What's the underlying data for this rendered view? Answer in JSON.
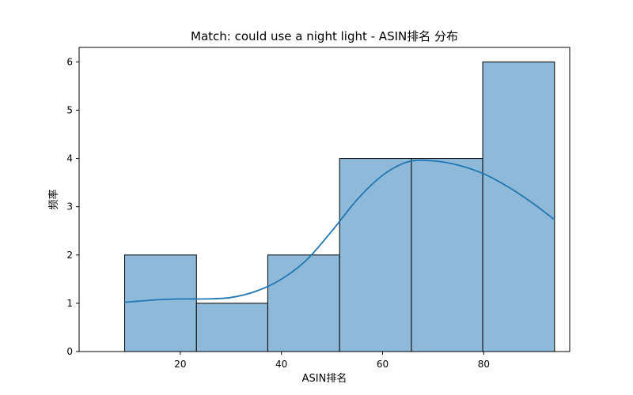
{
  "chart_data": {
    "type": "bar",
    "title": "Match: could use a night light - ASIN排名 分布",
    "xlabel": "ASIN排名",
    "ylabel": "频率",
    "bins": [
      {
        "start": 9.0,
        "end": 23.2,
        "count": 2
      },
      {
        "start": 23.2,
        "end": 37.3,
        "count": 1
      },
      {
        "start": 37.3,
        "end": 51.5,
        "count": 2
      },
      {
        "start": 51.5,
        "end": 65.7,
        "count": 4
      },
      {
        "start": 65.7,
        "end": 79.8,
        "count": 4
      },
      {
        "start": 79.8,
        "end": 94.0,
        "count": 6
      }
    ],
    "kde": {
      "name": "",
      "x": [
        9,
        15,
        20,
        25,
        30,
        35,
        40,
        45,
        50,
        55,
        60,
        65,
        70,
        75,
        80,
        85,
        90,
        94
      ],
      "y": [
        1.02,
        1.07,
        1.09,
        1.09,
        1.12,
        1.25,
        1.5,
        1.9,
        2.5,
        3.15,
        3.65,
        3.93,
        3.95,
        3.86,
        3.68,
        3.4,
        3.05,
        2.73
      ]
    },
    "xlim": [
      0,
      97
    ],
    "ylim": [
      0,
      6.3
    ],
    "xticks": [
      20,
      40,
      60,
      80
    ],
    "yticks": [
      0,
      1,
      2,
      3,
      4,
      5,
      6
    ],
    "grid": false,
    "colors": {
      "bar_fill": "#8fb9d9",
      "bar_edge": "#000000",
      "kde_line": "#1f77b4"
    }
  }
}
